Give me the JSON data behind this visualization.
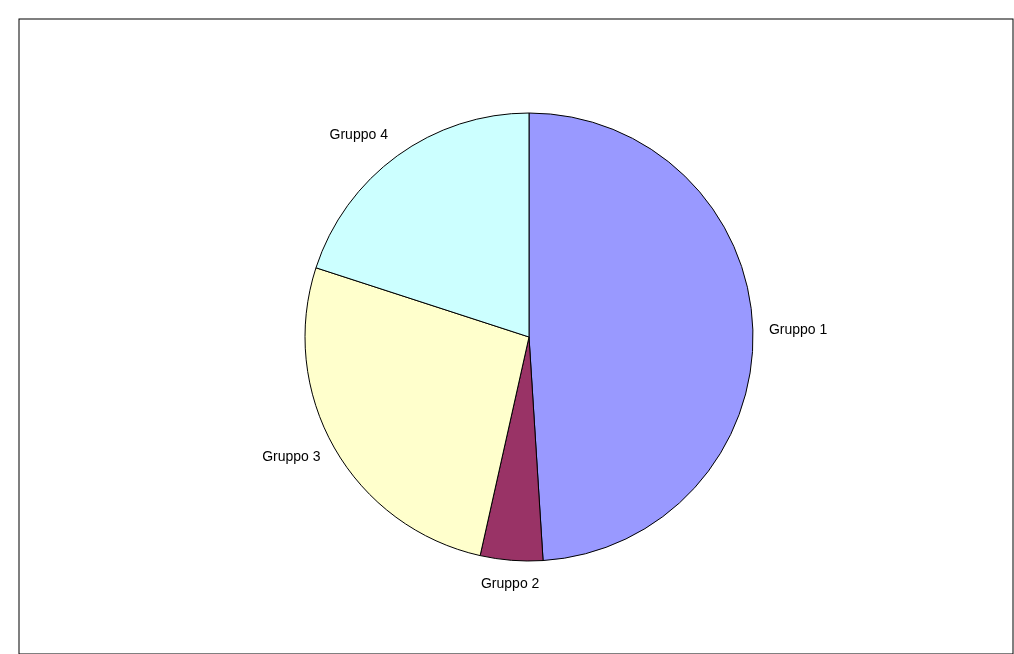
{
  "chart_data": {
    "type": "pie",
    "categories": [
      "Gruppo 1",
      "Gruppo 2",
      "Gruppo 3",
      "Gruppo 4"
    ],
    "values": [
      49,
      4.5,
      26.5,
      20
    ],
    "colors": [
      "#9999ff",
      "#993366",
      "#ffffcc",
      "#ccffff"
    ]
  }
}
